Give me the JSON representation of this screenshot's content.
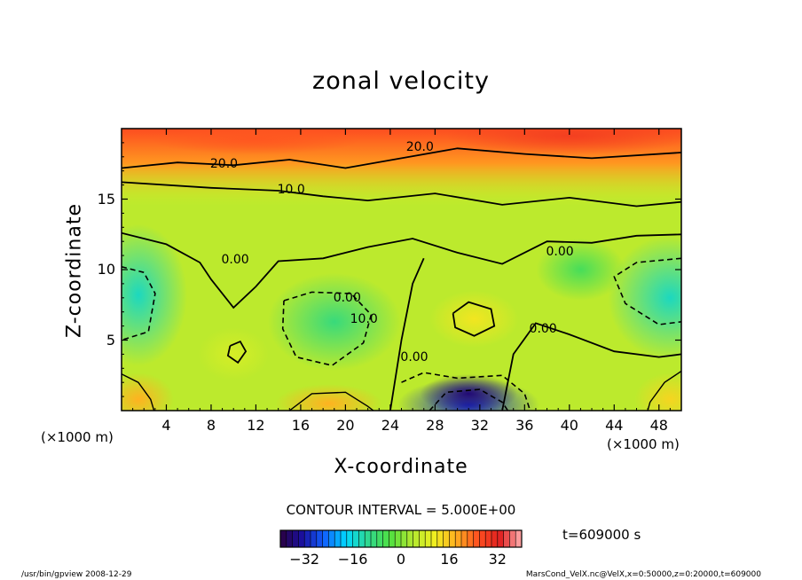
{
  "chart_data": {
    "type": "heatmap",
    "title": "zonal velocity",
    "xlabel": "X-coordinate",
    "ylabel": "Z-coordinate",
    "x_unit": "(×1000 m)",
    "y_unit": "(×1000 m)",
    "xlim": [
      0,
      50
    ],
    "ylim": [
      0,
      20
    ],
    "x_ticks": [
      4,
      8,
      12,
      16,
      20,
      24,
      28,
      32,
      36,
      40,
      44,
      48
    ],
    "y_ticks": [
      5,
      10,
      15
    ],
    "colorbar": {
      "min": -40,
      "max": 40,
      "ticks": [
        -32,
        -16,
        0,
        16,
        32
      ],
      "colors": [
        "#2a0040",
        "#1a10a0",
        "#1060ff",
        "#00d8ff",
        "#30d890",
        "#50e040",
        "#b0e830",
        "#f0f020",
        "#ffb020",
        "#ff5020",
        "#e02020",
        "#ffb0b0"
      ]
    },
    "contour_interval": "CONTOUR INTERVAL = 5.000E+00",
    "contour_labels": [
      "20.0",
      "20.0",
      "10.0",
      "0.00",
      "0.00",
      "10.0",
      "0.00",
      "0.00",
      "0.00"
    ],
    "time_label": "t=609000 s",
    "legend": "bottom",
    "grid": false
  },
  "footer": {
    "left": "/usr/bin/gpview   2008-12-29",
    "right": "MarsCond_VelX.nc@VelX,x=0:50000,z=0:20000,t=609000"
  }
}
